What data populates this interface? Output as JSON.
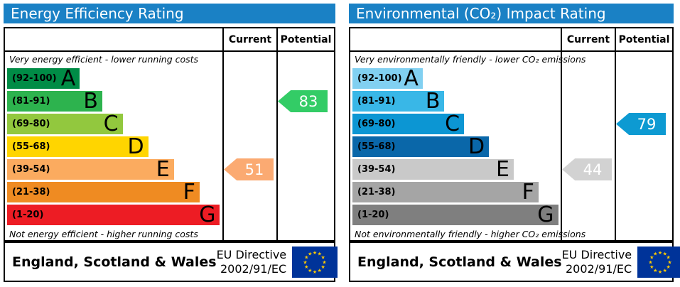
{
  "colors": {
    "header_bg": "#1a81c5",
    "border": "#000000",
    "eu_flag_bg": "#003399",
    "eu_flag_star": "#ffcc00"
  },
  "panels": [
    {
      "title": "Energy Efficiency Rating",
      "columns": {
        "current": "Current",
        "potential": "Potential"
      },
      "top_caption": "Very energy efficient - lower running costs",
      "bottom_caption": "Not energy efficient - higher running costs",
      "bands": [
        {
          "letter": "A",
          "range": "(92-100)",
          "color": "#008c46",
          "width_pct": 34
        },
        {
          "letter": "B",
          "range": "(81-91)",
          "color": "#2db34e",
          "width_pct": 44.5
        },
        {
          "letter": "C",
          "range": "(69-80)",
          "color": "#92c83e",
          "width_pct": 54
        },
        {
          "letter": "D",
          "range": "(55-68)",
          "color": "#ffd500",
          "width_pct": 66
        },
        {
          "letter": "E",
          "range": "(39-54)",
          "color": "#fbab5f",
          "width_pct": 78
        },
        {
          "letter": "F",
          "range": "(21-38)",
          "color": "#ef8b22",
          "width_pct": 90
        },
        {
          "letter": "G",
          "range": "(1-20)",
          "color": "#ed1c24",
          "width_pct": 99.5
        }
      ],
      "current": {
        "label": "51",
        "band_letter": "E",
        "color": "#fbaa72"
      },
      "potential": {
        "label": "83",
        "band_letter": "B",
        "color": "#33cc66"
      },
      "footer": {
        "region": "England, Scotland & Wales",
        "directive_line1": "EU Directive",
        "directive_line2": "2002/91/EC"
      }
    },
    {
      "title": "Environmental (CO₂) Impact Rating",
      "columns": {
        "current": "Current",
        "potential": "Potential"
      },
      "top_caption": "Very environmentally friendly - lower CO₂ emissions",
      "bottom_caption": "Not environmentally friendly - higher CO₂ emissions",
      "bands": [
        {
          "letter": "A",
          "range": "(92-100)",
          "color": "#81d0f1",
          "width_pct": 34
        },
        {
          "letter": "B",
          "range": "(81-91)",
          "color": "#39b7e7",
          "width_pct": 44.5
        },
        {
          "letter": "C",
          "range": "(69-80)",
          "color": "#0c96d3",
          "width_pct": 54
        },
        {
          "letter": "D",
          "range": "(55-68)",
          "color": "#0a67a9",
          "width_pct": 66
        },
        {
          "letter": "E",
          "range": "(39-54)",
          "color": "#c9c9c9",
          "width_pct": 78
        },
        {
          "letter": "F",
          "range": "(21-38)",
          "color": "#a5a5a5",
          "width_pct": 90
        },
        {
          "letter": "G",
          "range": "(1-20)",
          "color": "#7f7f7f",
          "width_pct": 99.5
        }
      ],
      "current": {
        "label": "44",
        "band_letter": "E",
        "color": "#d2d2d2"
      },
      "potential": {
        "label": "79",
        "band_letter": "C",
        "color": "#0d9ad2"
      },
      "footer": {
        "region": "England, Scotland & Wales",
        "directive_line1": "EU Directive",
        "directive_line2": "2002/91/EC"
      }
    }
  ],
  "chart_data": [
    {
      "type": "bar",
      "title": "Energy Efficiency Rating",
      "categories": [
        "A",
        "B",
        "C",
        "D",
        "E",
        "F",
        "G"
      ],
      "band_ranges": [
        "92-100",
        "81-91",
        "69-80",
        "55-68",
        "39-54",
        "21-38",
        "1-20"
      ],
      "bar_lengths_pct": [
        34,
        44.5,
        54,
        66,
        78,
        90,
        99.5
      ],
      "current": 51,
      "current_band": "E",
      "potential": 83,
      "potential_band": "B",
      "top_annotation": "Very energy efficient - lower running costs",
      "bottom_annotation": "Not energy efficient - higher running costs",
      "region": "England, Scotland & Wales",
      "directive": "EU Directive 2002/91/EC"
    },
    {
      "type": "bar",
      "title": "Environmental (CO₂) Impact Rating",
      "categories": [
        "A",
        "B",
        "C",
        "D",
        "E",
        "F",
        "G"
      ],
      "band_ranges": [
        "92-100",
        "81-91",
        "69-80",
        "55-68",
        "39-54",
        "21-38",
        "1-20"
      ],
      "bar_lengths_pct": [
        34,
        44.5,
        54,
        66,
        78,
        90,
        99.5
      ],
      "current": 44,
      "current_band": "E",
      "potential": 79,
      "potential_band": "C",
      "top_annotation": "Very environmentally friendly - lower CO₂ emissions",
      "bottom_annotation": "Not environmentally friendly - higher CO₂ emissions",
      "region": "England, Scotland & Wales",
      "directive": "EU Directive 2002/91/EC"
    }
  ]
}
